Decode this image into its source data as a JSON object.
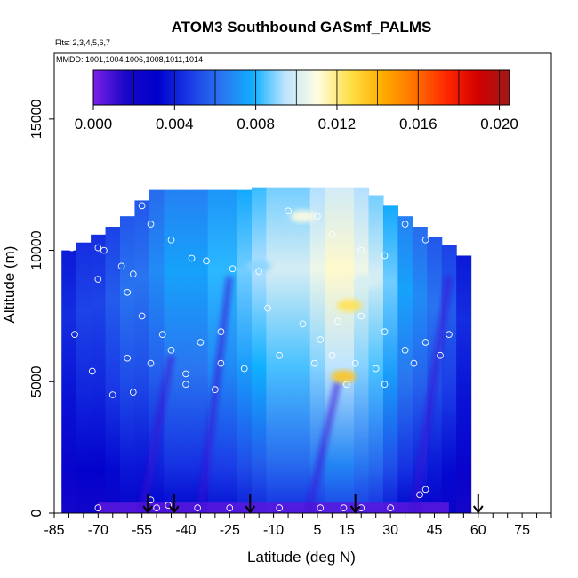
{
  "chart_data": {
    "type": "heatmap",
    "title": "ATOM3 Southbound GASmf_PALMS",
    "flights_label": "Flts: 2,3,4,5,6,7",
    "mmdd_label": "MMDD: 1001,1004,1006,1008,1011,1014",
    "xlabel": "Latitude (deg N)",
    "ylabel": "Altitude (m)",
    "xlim": [
      -85,
      85
    ],
    "ylim": [
      0,
      17500
    ],
    "x_ticks": [
      -85,
      -70,
      -55,
      -40,
      -25,
      -10,
      5,
      15,
      30,
      45,
      60,
      75
    ],
    "y_ticks": [
      0,
      5000,
      10000,
      15000
    ],
    "colorbar": {
      "min": 0.0,
      "max": 0.0205,
      "ticks": [
        "0.000",
        "0.004",
        "0.008",
        "0.012",
        "0.016",
        "0.020"
      ],
      "tick_values": [
        0.0,
        0.004,
        0.008,
        0.012,
        0.016,
        0.02
      ],
      "colors": [
        "#7a1fe8",
        "#1a08c8",
        "#0000cc",
        "#1a3ae6",
        "#2a76f0",
        "#10b0ff",
        "#bfe4ff",
        "#fffde0",
        "#ffe04a",
        "#ffb000",
        "#ff7400",
        "#ff2a00",
        "#d40000",
        "#9c1a1a"
      ]
    },
    "arrow_latitudes": [
      -53,
      -44,
      -18,
      18,
      60
    ],
    "profiles": [
      {
        "lat": -80,
        "top": 10000,
        "value": 0.0035
      },
      {
        "lat": -75,
        "top": 10300,
        "value": 0.004
      },
      {
        "lat": -70,
        "top": 10600,
        "value": 0.004
      },
      {
        "lat": -65,
        "top": 10900,
        "value": 0.0045
      },
      {
        "lat": -60,
        "top": 11300,
        "value": 0.005
      },
      {
        "lat": -55,
        "top": 11900,
        "value": 0.005
      },
      {
        "lat": -50,
        "top": 12300,
        "value": 0.0055
      },
      {
        "lat": -45,
        "top": 12300,
        "value": 0.006
      },
      {
        "lat": -40,
        "top": 12300,
        "value": 0.006
      },
      {
        "lat": -35,
        "top": 12300,
        "value": 0.006
      },
      {
        "lat": -30,
        "top": 12300,
        "value": 0.0065
      },
      {
        "lat": -25,
        "top": 12300,
        "value": 0.0065
      },
      {
        "lat": -20,
        "top": 12300,
        "value": 0.007
      },
      {
        "lat": -15,
        "top": 12400,
        "value": 0.0075
      },
      {
        "lat": -10,
        "top": 12400,
        "value": 0.008
      },
      {
        "lat": -5,
        "top": 12400,
        "value": 0.008
      },
      {
        "lat": 0,
        "top": 12400,
        "value": 0.008
      },
      {
        "lat": 5,
        "top": 12400,
        "value": 0.0085
      },
      {
        "lat": 10,
        "top": 12400,
        "value": 0.009
      },
      {
        "lat": 15,
        "top": 12400,
        "value": 0.009
      },
      {
        "lat": 20,
        "top": 12400,
        "value": 0.0085
      },
      {
        "lat": 25,
        "top": 12100,
        "value": 0.008
      },
      {
        "lat": 30,
        "top": 11700,
        "value": 0.007
      },
      {
        "lat": 35,
        "top": 11300,
        "value": 0.006
      },
      {
        "lat": 40,
        "top": 10900,
        "value": 0.0055
      },
      {
        "lat": 45,
        "top": 10500,
        "value": 0.005
      },
      {
        "lat": 50,
        "top": 10200,
        "value": 0.0045
      },
      {
        "lat": 55,
        "top": 9800,
        "value": 0.0035
      }
    ],
    "hotspots": [
      {
        "lat": 16,
        "alt": 7900,
        "value": 0.0125
      },
      {
        "lat": 14,
        "alt": 5200,
        "value": 0.0135
      },
      {
        "lat": 0,
        "alt": 11300,
        "value": 0.011
      },
      {
        "lat": -15,
        "alt": 9400,
        "value": 0.009
      },
      {
        "lat": 22,
        "alt": 8800,
        "value": 0.01
      }
    ],
    "samples": [
      [
        -79,
        10100
      ],
      [
        -70,
        10100
      ],
      [
        -68,
        10000
      ],
      [
        -62,
        9400
      ],
      [
        -58,
        9100
      ],
      [
        -55,
        11700
      ],
      [
        -52,
        11000
      ],
      [
        -45,
        10400
      ],
      [
        -38,
        9700
      ],
      [
        -33,
        9600
      ],
      [
        -24,
        9300
      ],
      [
        -15,
        9200
      ],
      [
        -5,
        11500
      ],
      [
        5,
        11300
      ],
      [
        10,
        10600
      ],
      [
        20,
        10000
      ],
      [
        28,
        9800
      ],
      [
        35,
        11000
      ],
      [
        42,
        10400
      ],
      [
        -70,
        8900
      ],
      [
        -60,
        8400
      ],
      [
        -55,
        7500
      ],
      [
        -48,
        6800
      ],
      [
        -35,
        6500
      ],
      [
        -28,
        6900
      ],
      [
        -12,
        7800
      ],
      [
        0,
        7200
      ],
      [
        6,
        6600
      ],
      [
        12,
        7300
      ],
      [
        20,
        7500
      ],
      [
        28,
        6900
      ],
      [
        35,
        6200
      ],
      [
        42,
        6500
      ],
      [
        50,
        6800
      ],
      [
        -78,
        6800
      ],
      [
        -72,
        5400
      ],
      [
        -60,
        5900
      ],
      [
        -52,
        5700
      ],
      [
        -45,
        6200
      ],
      [
        -40,
        5300
      ],
      [
        -28,
        5700
      ],
      [
        -20,
        5500
      ],
      [
        -8,
        6000
      ],
      [
        4,
        5700
      ],
      [
        10,
        6000
      ],
      [
        18,
        5700
      ],
      [
        25,
        5500
      ],
      [
        38,
        5700
      ],
      [
        47,
        6000
      ],
      [
        -65,
        4500
      ],
      [
        -58,
        4600
      ],
      [
        -40,
        4900
      ],
      [
        -30,
        4700
      ],
      [
        15,
        4900
      ],
      [
        28,
        4900
      ],
      [
        -52,
        500
      ],
      [
        -46,
        300
      ],
      [
        -25,
        200
      ],
      [
        -8,
        200
      ],
      [
        6,
        200
      ],
      [
        14,
        200
      ],
      [
        20,
        200
      ],
      [
        30,
        200
      ],
      [
        40,
        700
      ],
      [
        42,
        900
      ],
      [
        -70,
        200
      ],
      [
        -50,
        200
      ],
      [
        -36,
        200
      ]
    ]
  }
}
